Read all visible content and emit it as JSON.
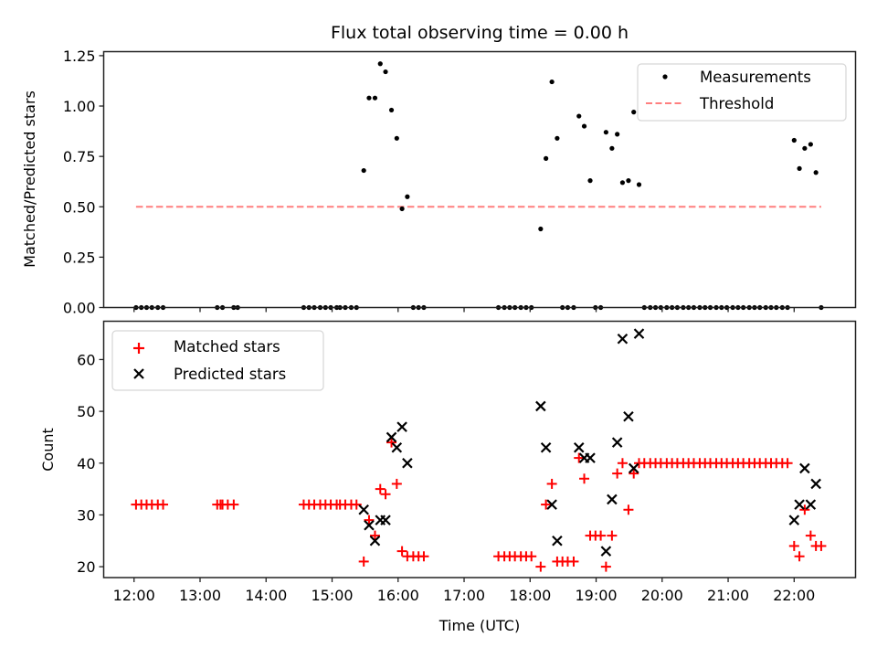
{
  "chart_data": [
    {
      "type": "scatter",
      "title": "Flux total observing time = 0.00 h",
      "xlabel": "",
      "ylabel": "Matched/Predicted stars",
      "x_unit": "hours UTC (decimal)",
      "xlim": [
        11.54,
        22.93
      ],
      "ylim": [
        0,
        1.27
      ],
      "yticks": [
        0.0,
        0.25,
        0.5,
        0.75,
        1.0,
        1.25
      ],
      "ytick_labels": [
        "0.00",
        "0.25",
        "0.50",
        "0.75",
        "1.00",
        "1.25"
      ],
      "xticks": [
        12,
        13,
        14,
        15,
        16,
        17,
        18,
        19,
        20,
        21,
        22
      ],
      "xtick_labels_visible": false,
      "grid": false,
      "legend": {
        "placement": "upper-right",
        "entries": [
          {
            "label": "Measurements",
            "marker": "dot",
            "color": "#000000"
          },
          {
            "label": "Threshold",
            "style": "dashed-line",
            "color": "#ff7f7f"
          }
        ]
      },
      "series": [
        {
          "name": "Measurements",
          "color": "#000000",
          "marker": "dot",
          "points": [
            [
              12.03,
              0
            ],
            [
              12.11,
              0
            ],
            [
              12.19,
              0
            ],
            [
              12.27,
              0
            ],
            [
              12.36,
              0
            ],
            [
              12.44,
              0
            ],
            [
              13.26,
              0
            ],
            [
              13.34,
              0
            ],
            [
              13.51,
              0
            ],
            [
              13.57,
              0
            ],
            [
              14.57,
              0
            ],
            [
              14.65,
              0
            ],
            [
              14.73,
              0
            ],
            [
              14.82,
              0
            ],
            [
              14.9,
              0
            ],
            [
              14.98,
              0
            ],
            [
              15.07,
              0
            ],
            [
              15.12,
              0
            ],
            [
              15.2,
              0
            ],
            [
              15.29,
              0
            ],
            [
              15.37,
              0
            ],
            [
              15.48,
              0.68
            ],
            [
              15.56,
              1.04
            ],
            [
              15.65,
              1.04
            ],
            [
              15.73,
              1.21
            ],
            [
              15.81,
              1.17
            ],
            [
              15.9,
              0.98
            ],
            [
              15.98,
              0.84
            ],
            [
              16.06,
              0.49
            ],
            [
              16.14,
              0.55
            ],
            [
              16.23,
              0
            ],
            [
              16.31,
              0
            ],
            [
              16.39,
              0
            ],
            [
              17.52,
              0
            ],
            [
              17.61,
              0
            ],
            [
              17.69,
              0
            ],
            [
              17.77,
              0
            ],
            [
              17.86,
              0
            ],
            [
              17.94,
              0
            ],
            [
              18.02,
              0
            ],
            [
              18.16,
              0.39
            ],
            [
              18.24,
              0.74
            ],
            [
              18.33,
              1.12
            ],
            [
              18.41,
              0.84
            ],
            [
              18.49,
              0
            ],
            [
              18.57,
              0
            ],
            [
              18.66,
              0
            ],
            [
              18.74,
              0.95
            ],
            [
              18.82,
              0.9
            ],
            [
              18.91,
              0.63
            ],
            [
              18.99,
              0
            ],
            [
              19.07,
              0
            ],
            [
              19.15,
              0.87
            ],
            [
              19.24,
              0.79
            ],
            [
              19.32,
              0.86
            ],
            [
              19.4,
              0.62
            ],
            [
              19.49,
              0.63
            ],
            [
              19.57,
              0.97
            ],
            [
              19.65,
              0.61
            ],
            [
              19.73,
              0
            ],
            [
              19.82,
              0
            ],
            [
              19.9,
              0
            ],
            [
              19.98,
              0
            ],
            [
              20.07,
              0
            ],
            [
              20.15,
              0
            ],
            [
              20.23,
              0
            ],
            [
              20.32,
              0
            ],
            [
              20.4,
              0
            ],
            [
              20.48,
              0
            ],
            [
              20.57,
              0
            ],
            [
              20.65,
              0
            ],
            [
              20.73,
              0
            ],
            [
              20.82,
              0
            ],
            [
              20.9,
              0
            ],
            [
              20.98,
              0
            ],
            [
              21.07,
              0
            ],
            [
              21.15,
              0
            ],
            [
              21.23,
              0
            ],
            [
              21.32,
              0
            ],
            [
              21.4,
              0
            ],
            [
              21.48,
              0
            ],
            [
              21.57,
              0
            ],
            [
              21.65,
              0
            ],
            [
              21.73,
              0
            ],
            [
              21.82,
              0
            ],
            [
              21.9,
              0
            ],
            [
              22.0,
              0.83
            ],
            [
              22.08,
              0.69
            ],
            [
              22.16,
              0.79
            ],
            [
              22.25,
              0.81
            ],
            [
              22.33,
              0.67
            ],
            [
              22.41,
              0
            ]
          ]
        },
        {
          "name": "Threshold",
          "color": "#ff7f7f",
          "style": "dashed",
          "x": [
            12.03,
            22.41
          ],
          "y": [
            0.5,
            0.5
          ]
        }
      ]
    },
    {
      "type": "scatter",
      "title": "",
      "xlabel": "Time (UTC)",
      "ylabel": "Count",
      "x_unit": "hours UTC (decimal)",
      "xlim": [
        11.54,
        22.93
      ],
      "ylim": [
        17.9,
        67.4
      ],
      "yticks": [
        20,
        30,
        40,
        50,
        60
      ],
      "ytick_labels": [
        "20",
        "30",
        "40",
        "50",
        "60"
      ],
      "xticks": [
        12,
        13,
        14,
        15,
        16,
        17,
        18,
        19,
        20,
        21,
        22
      ],
      "xtick_labels": [
        "12:00",
        "13:00",
        "14:00",
        "15:00",
        "16:00",
        "17:00",
        "18:00",
        "19:00",
        "20:00",
        "21:00",
        "22:00"
      ],
      "grid": false,
      "legend": {
        "placement": "upper-left",
        "entries": [
          {
            "label": "Matched stars",
            "marker": "plus",
            "color": "#ff0000"
          },
          {
            "label": "Predicted stars",
            "marker": "x",
            "color": "#000000"
          }
        ]
      },
      "series": [
        {
          "name": "Matched stars",
          "color": "#ff0000",
          "marker": "plus",
          "points": [
            [
              12.03,
              32
            ],
            [
              12.11,
              32
            ],
            [
              12.19,
              32
            ],
            [
              12.27,
              32
            ],
            [
              12.36,
              32
            ],
            [
              12.44,
              32
            ],
            [
              13.26,
              32
            ],
            [
              13.31,
              32
            ],
            [
              13.34,
              32
            ],
            [
              13.42,
              32
            ],
            [
              13.51,
              32
            ],
            [
              14.57,
              32
            ],
            [
              14.65,
              32
            ],
            [
              14.73,
              32
            ],
            [
              14.82,
              32
            ],
            [
              14.9,
              32
            ],
            [
              14.98,
              32
            ],
            [
              15.07,
              32
            ],
            [
              15.12,
              32
            ],
            [
              15.2,
              32
            ],
            [
              15.29,
              32
            ],
            [
              15.37,
              32
            ],
            [
              15.48,
              21
            ],
            [
              15.56,
              29
            ],
            [
              15.65,
              26
            ],
            [
              15.73,
              35
            ],
            [
              15.81,
              34
            ],
            [
              15.9,
              44
            ],
            [
              15.98,
              36
            ],
            [
              16.06,
              23
            ],
            [
              16.14,
              22
            ],
            [
              16.23,
              22
            ],
            [
              16.31,
              22
            ],
            [
              16.39,
              22
            ],
            [
              17.52,
              22
            ],
            [
              17.61,
              22
            ],
            [
              17.69,
              22
            ],
            [
              17.77,
              22
            ],
            [
              17.86,
              22
            ],
            [
              17.94,
              22
            ],
            [
              18.02,
              22
            ],
            [
              18.16,
              20
            ],
            [
              18.24,
              32
            ],
            [
              18.33,
              36
            ],
            [
              18.41,
              21
            ],
            [
              18.49,
              21
            ],
            [
              18.57,
              21
            ],
            [
              18.66,
              21
            ],
            [
              18.74,
              41
            ],
            [
              18.82,
              37
            ],
            [
              18.91,
              26
            ],
            [
              18.99,
              26
            ],
            [
              19.07,
              26
            ],
            [
              19.15,
              20
            ],
            [
              19.24,
              26
            ],
            [
              19.32,
              38
            ],
            [
              19.4,
              40
            ],
            [
              19.49,
              31
            ],
            [
              19.57,
              38
            ],
            [
              19.65,
              40
            ],
            [
              19.73,
              40
            ],
            [
              19.82,
              40
            ],
            [
              19.9,
              40
            ],
            [
              19.98,
              40
            ],
            [
              20.07,
              40
            ],
            [
              20.15,
              40
            ],
            [
              20.23,
              40
            ],
            [
              20.32,
              40
            ],
            [
              20.4,
              40
            ],
            [
              20.48,
              40
            ],
            [
              20.57,
              40
            ],
            [
              20.65,
              40
            ],
            [
              20.73,
              40
            ],
            [
              20.82,
              40
            ],
            [
              20.9,
              40
            ],
            [
              20.98,
              40
            ],
            [
              21.07,
              40
            ],
            [
              21.15,
              40
            ],
            [
              21.23,
              40
            ],
            [
              21.32,
              40
            ],
            [
              21.4,
              40
            ],
            [
              21.48,
              40
            ],
            [
              21.57,
              40
            ],
            [
              21.65,
              40
            ],
            [
              21.73,
              40
            ],
            [
              21.82,
              40
            ],
            [
              21.9,
              40
            ],
            [
              22.0,
              24
            ],
            [
              22.08,
              22
            ],
            [
              22.16,
              31
            ],
            [
              22.25,
              26
            ],
            [
              22.33,
              24
            ],
            [
              22.41,
              24
            ]
          ]
        },
        {
          "name": "Predicted stars",
          "color": "#000000",
          "marker": "x",
          "points": [
            [
              15.48,
              31
            ],
            [
              15.56,
              28
            ],
            [
              15.65,
              25
            ],
            [
              15.73,
              29
            ],
            [
              15.81,
              29
            ],
            [
              15.9,
              45
            ],
            [
              15.98,
              43
            ],
            [
              16.06,
              47
            ],
            [
              16.14,
              40
            ],
            [
              18.16,
              51
            ],
            [
              18.24,
              43
            ],
            [
              18.33,
              32
            ],
            [
              18.41,
              25
            ],
            [
              18.74,
              43
            ],
            [
              18.82,
              41
            ],
            [
              18.91,
              41
            ],
            [
              19.15,
              23
            ],
            [
              19.24,
              33
            ],
            [
              19.32,
              44
            ],
            [
              19.4,
              64
            ],
            [
              19.49,
              49
            ],
            [
              19.57,
              39
            ],
            [
              19.65,
              65
            ],
            [
              22.0,
              29
            ],
            [
              22.08,
              32
            ],
            [
              22.16,
              39
            ],
            [
              22.25,
              32
            ],
            [
              22.33,
              36
            ]
          ]
        }
      ]
    }
  ]
}
